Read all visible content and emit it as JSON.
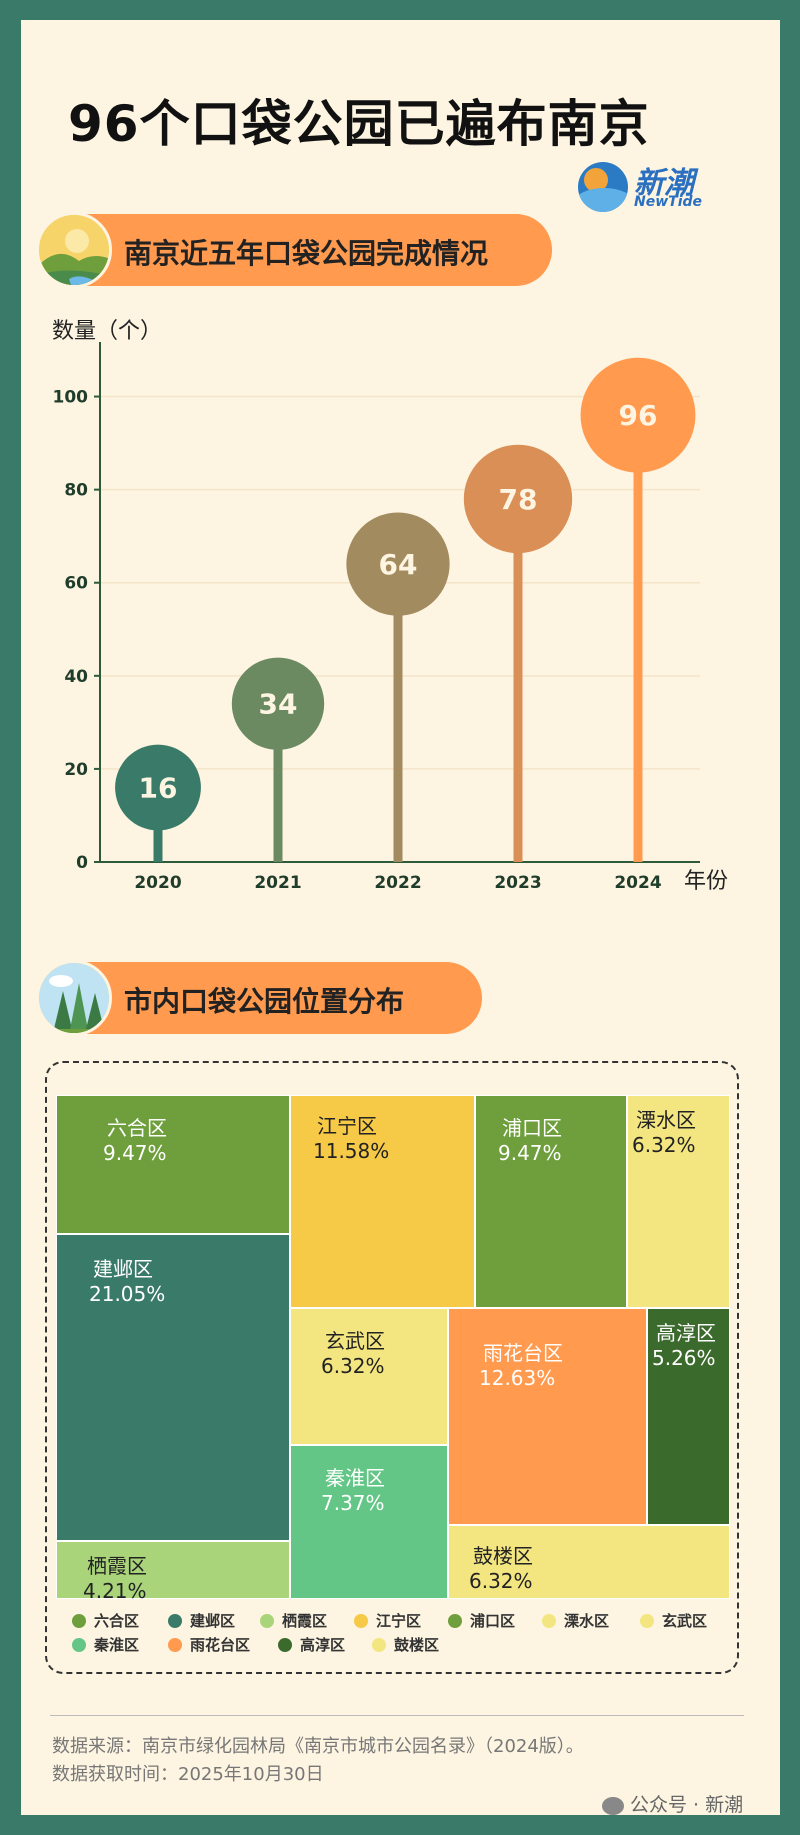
{
  "title": "96个口袋公园已遍布南京",
  "logo": {
    "name": "新潮",
    "sub": "NewTide"
  },
  "section1": {
    "title": "南京近五年口袋公园完成情况"
  },
  "section2": {
    "title": "市内口袋公园位置分布"
  },
  "chart_data": [
    {
      "type": "bar",
      "ylabel": "数量（个）",
      "xlabel": "年份",
      "categories": [
        "2020",
        "2021",
        "2022",
        "2023",
        "2024"
      ],
      "values": [
        16,
        34,
        64,
        78,
        96
      ],
      "ylim": [
        0,
        110
      ],
      "yticks": [
        0,
        20,
        40,
        60,
        80,
        100
      ],
      "colors": [
        "#3a7a68",
        "#6b8a62",
        "#a38b60",
        "#d98f55",
        "#ff9a4f"
      ],
      "grid": true
    },
    {
      "type": "treemap",
      "items": [
        {
          "name": "六合区",
          "pct": "9.47%",
          "color": "#6e9f3c"
        },
        {
          "name": "建邺区",
          "pct": "21.05%",
          "color": "#3a7a68"
        },
        {
          "name": "栖霞区",
          "pct": "4.21%",
          "color": "#a9d47a"
        },
        {
          "name": "江宁区",
          "pct": "11.58%",
          "color": "#f6c947"
        },
        {
          "name": "浦口区",
          "pct": "9.47%",
          "color": "#6e9f3c"
        },
        {
          "name": "溧水区",
          "pct": "6.32%",
          "color": "#f3e681"
        },
        {
          "name": "玄武区",
          "pct": "6.32%",
          "color": "#f3e681"
        },
        {
          "name": "秦淮区",
          "pct": "7.37%",
          "color": "#63c686"
        },
        {
          "name": "雨花台区",
          "pct": "12.63%",
          "color": "#ff9a4f"
        },
        {
          "name": "高淳区",
          "pct": "5.26%",
          "color": "#3b6a2d"
        },
        {
          "name": "鼓楼区",
          "pct": "6.32%",
          "color": "#f3e681"
        }
      ]
    }
  ],
  "footer": {
    "source": "数据来源：南京市绿化园林局《南京市城市公园名录》（2024版）。",
    "fetch_time": "数据获取时间：2025年10月30日",
    "watermark": "公众号 · 新潮"
  }
}
